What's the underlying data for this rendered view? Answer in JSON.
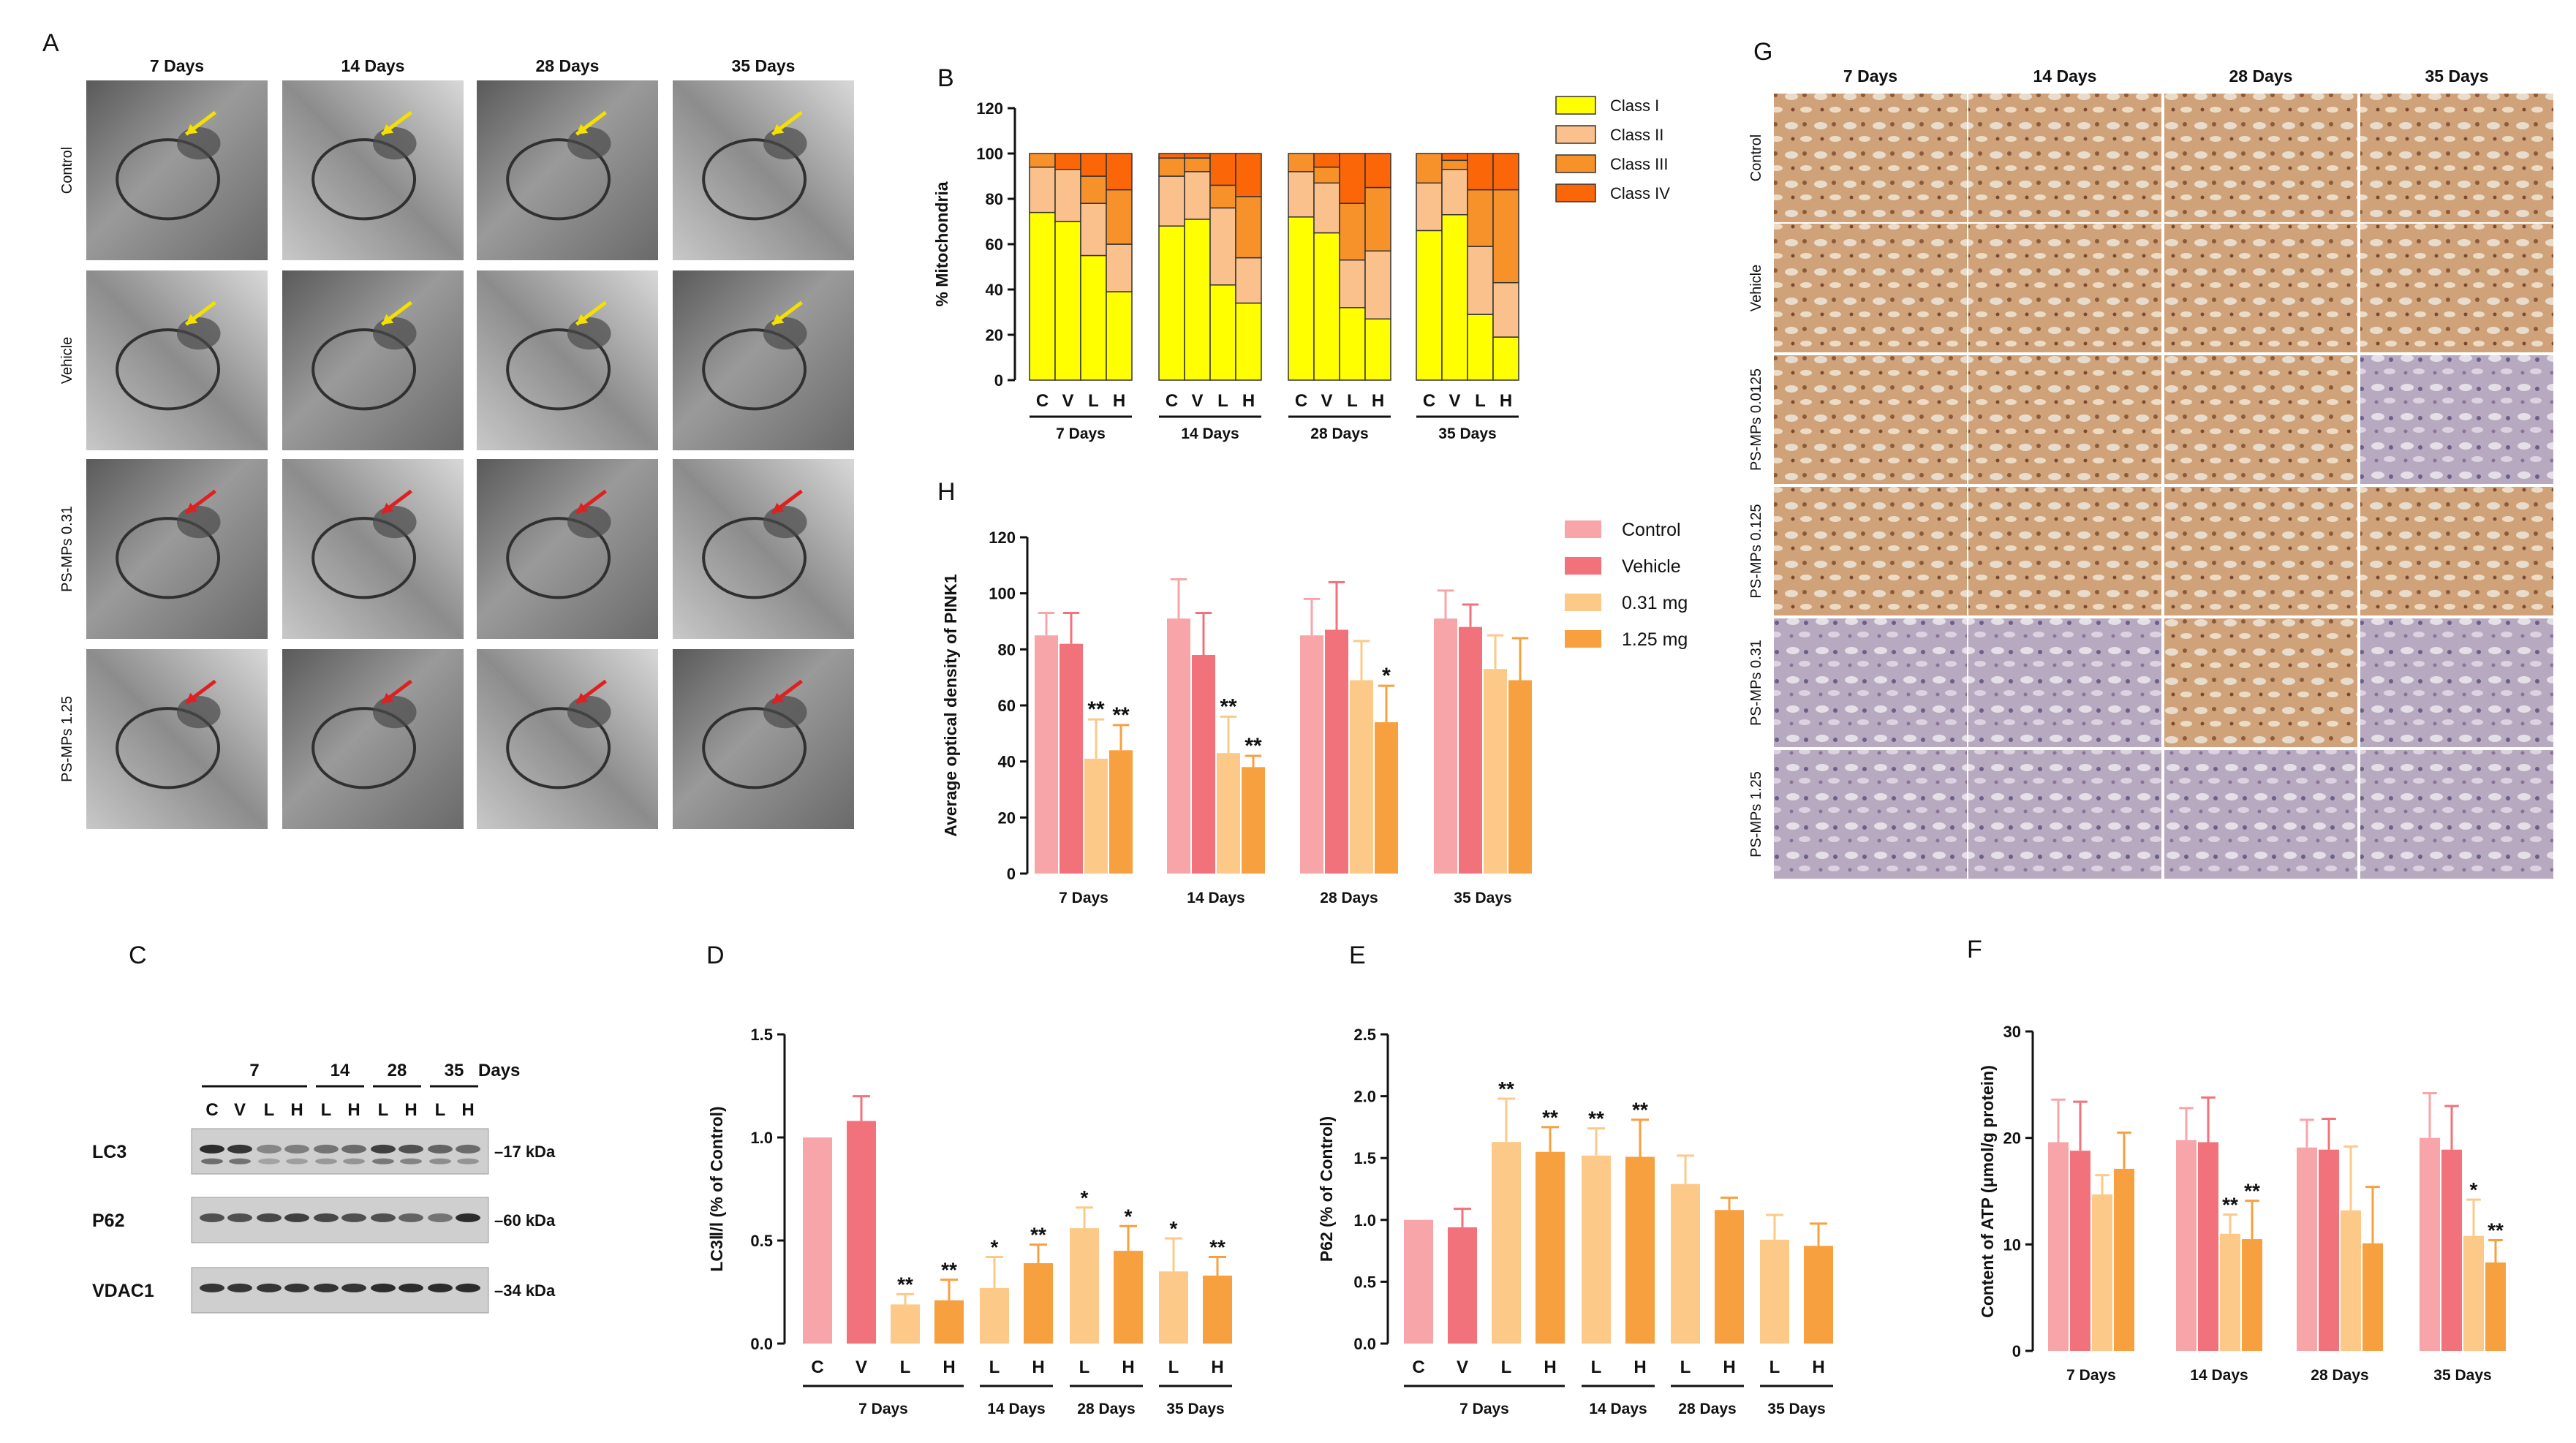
{
  "panels": {
    "A": "A",
    "B": "B",
    "C": "C",
    "D": "D",
    "E": "E",
    "F": "F",
    "G": "G",
    "H": "H"
  },
  "colors": {
    "control": "#f7a5a8",
    "vehicle": "#f1727a",
    "low": "#fcc989",
    "high": "#f7a040",
    "class1": "#ffff00",
    "class2": "#fbc18d",
    "class3": "#f7922b",
    "class4": "#fb6609",
    "arrow_yellow": "#f5e000",
    "arrow_red": "#e02020"
  },
  "tem": {
    "columns": [
      "7 Days",
      "14 Days",
      "28 Days",
      "35 Days"
    ],
    "rows": [
      "Control",
      "Vehicle",
      "PS-MPs 0.31",
      "PS-MPs 1.25"
    ]
  },
  "ihc": {
    "columns": [
      "7 Days",
      "14 Days",
      "28 Days",
      "35 Days"
    ],
    "rows": [
      "Control",
      "Vehicle",
      "PS-MPs 0.0125",
      "PS-MPs 0.125",
      "PS-MPs 0.31",
      "PS-MPs 1.25"
    ]
  },
  "blot": {
    "header_groups": [
      "7",
      "14",
      "28",
      "35"
    ],
    "days_label": "Days",
    "lanes": [
      "C",
      "V",
      "L",
      "H",
      "L",
      "H",
      "L",
      "H",
      "L",
      "H"
    ],
    "rows": [
      {
        "label": "LC3",
        "kda": "–17 kDa"
      },
      {
        "label": "P62",
        "kda": "–60 kDa"
      },
      {
        "label": "VDAC1",
        "kda": "–34 kDa"
      }
    ]
  },
  "chart_data": [
    {
      "id": "B",
      "type": "bar",
      "stacked": true,
      "ylabel": "% Mitochondria",
      "ylim": [
        0,
        120
      ],
      "yticks": [
        0,
        20,
        40,
        60,
        80,
        100,
        120
      ],
      "groups": [
        "7 Days",
        "14 Days",
        "28 Days",
        "35 Days"
      ],
      "categories": [
        "C",
        "V",
        "L",
        "H"
      ],
      "legend": [
        "Class I",
        "Class II",
        "Class III",
        "Class IV"
      ],
      "series": [
        {
          "name": "Class I",
          "values": [
            [
              74,
              70,
              55,
              39
            ],
            [
              68,
              71,
              42,
              34
            ],
            [
              72,
              65,
              32,
              27
            ],
            [
              66,
              73,
              29,
              19
            ]
          ]
        },
        {
          "name": "Class II",
          "values": [
            [
              20,
              23,
              23,
              21
            ],
            [
              22,
              21,
              34,
              20
            ],
            [
              20,
              22,
              21,
              30
            ],
            [
              21,
              20,
              30,
              24
            ]
          ]
        },
        {
          "name": "Class III",
          "values": [
            [
              6,
              0,
              12,
              24
            ],
            [
              8,
              6,
              10,
              27
            ],
            [
              8,
              7,
              25,
              28
            ],
            [
              13,
              4,
              25,
              41
            ]
          ]
        },
        {
          "name": "Class IV",
          "values": [
            [
              0,
              7,
              10,
              16
            ],
            [
              2,
              2,
              14,
              19
            ],
            [
              0,
              6,
              22,
              15
            ],
            [
              0,
              3,
              16,
              16
            ]
          ]
        }
      ]
    },
    {
      "id": "H",
      "type": "bar",
      "ylabel": "Average optical density of PINK1",
      "ylim": [
        0,
        120
      ],
      "yticks": [
        0,
        20,
        40,
        60,
        80,
        100,
        120
      ],
      "categories": [
        "7 Days",
        "14 Days",
        "28 Days",
        "35 Days"
      ],
      "legend": [
        "Control",
        "Vehicle",
        "0.31 mg",
        "1.25 mg"
      ],
      "series": [
        {
          "name": "Control",
          "values": [
            85,
            91,
            85,
            91
          ],
          "errors": [
            8,
            14,
            13,
            10
          ],
          "stars": [
            "",
            "",
            "",
            ""
          ]
        },
        {
          "name": "Vehicle",
          "values": [
            82,
            78,
            87,
            88
          ],
          "errors": [
            11,
            15,
            17,
            8
          ],
          "stars": [
            "",
            "",
            "",
            ""
          ]
        },
        {
          "name": "0.31 mg",
          "values": [
            41,
            43,
            69,
            73
          ],
          "errors": [
            14,
            13,
            14,
            12
          ],
          "stars": [
            "**",
            "**",
            "",
            ""
          ]
        },
        {
          "name": "1.25 mg",
          "values": [
            44,
            38,
            54,
            69
          ],
          "errors": [
            9,
            4,
            13,
            15
          ],
          "stars": [
            "**",
            "**",
            "*",
            ""
          ]
        }
      ]
    },
    {
      "id": "D",
      "type": "bar",
      "ylabel": "LC3Ⅱ/Ⅰ (% of Control)",
      "ylim": [
        0,
        1.5
      ],
      "yticks": [
        "0.0",
        "0.5",
        "1.0",
        "1.5"
      ],
      "categories": [
        "C",
        "V",
        "L",
        "H",
        "L",
        "H",
        "L",
        "H",
        "L",
        "H"
      ],
      "groups": [
        "7 Days",
        "14 Days",
        "28 Days",
        "35 Days"
      ],
      "values": [
        1.0,
        1.08,
        0.19,
        0.21,
        0.27,
        0.39,
        0.56,
        0.45,
        0.35,
        0.33
      ],
      "errors": [
        0,
        0.12,
        0.05,
        0.1,
        0.15,
        0.09,
        0.1,
        0.12,
        0.16,
        0.09
      ],
      "stars": [
        "",
        "",
        "**",
        "**",
        "*",
        "**",
        "*",
        "*",
        "*",
        "**"
      ]
    },
    {
      "id": "E",
      "type": "bar",
      "ylabel": "P62 (% of Control)",
      "ylim": [
        0,
        2.5
      ],
      "yticks": [
        "0.0",
        "0.5",
        "1.0",
        "1.5",
        "2.0",
        "2.5"
      ],
      "categories": [
        "C",
        "V",
        "L",
        "H",
        "L",
        "H",
        "L",
        "H",
        "L",
        "H"
      ],
      "groups": [
        "7 Days",
        "14 Days",
        "28 Days",
        "35 Days"
      ],
      "values": [
        1.0,
        0.94,
        1.63,
        1.55,
        1.52,
        1.51,
        1.29,
        1.08,
        0.84,
        0.79
      ],
      "errors": [
        0,
        0.15,
        0.35,
        0.2,
        0.22,
        0.3,
        0.23,
        0.1,
        0.2,
        0.18
      ],
      "stars": [
        "",
        "",
        "**",
        "**",
        "**",
        "**",
        "",
        "",
        "",
        ""
      ]
    },
    {
      "id": "F",
      "type": "bar",
      "ylabel": "Content of ATP (μmol/g protein)",
      "ylim": [
        0,
        30
      ],
      "yticks": [
        0,
        10,
        20,
        30
      ],
      "categories": [
        "7 Days",
        "14 Days",
        "28 Days",
        "35 Days"
      ],
      "series": [
        {
          "name": "Control",
          "values": [
            19.6,
            19.8,
            19.1,
            20.0
          ],
          "errors": [
            4,
            3,
            2.6,
            4.2
          ],
          "stars": [
            "",
            "",
            "",
            ""
          ]
        },
        {
          "name": "Vehicle",
          "values": [
            18.8,
            19.6,
            18.9,
            18.9
          ],
          "errors": [
            4.6,
            4.2,
            2.9,
            4.1
          ],
          "stars": [
            "",
            "",
            "",
            ""
          ]
        },
        {
          "name": "0.31 mg",
          "values": [
            14.7,
            11.0,
            13.2,
            10.8
          ],
          "errors": [
            1.8,
            1.8,
            6,
            3.4
          ],
          "stars": [
            "",
            "**",
            "",
            "*"
          ]
        },
        {
          "name": "1.25 mg",
          "values": [
            17.1,
            10.5,
            10.1,
            8.3
          ],
          "errors": [
            3.4,
            3.6,
            5.3,
            2.1
          ],
          "stars": [
            "",
            "**",
            "",
            ""
          ]
        }
      ],
      "extra_stars": [
        {
          "group": 3,
          "series": 3,
          "text": "**"
        }
      ]
    }
  ]
}
